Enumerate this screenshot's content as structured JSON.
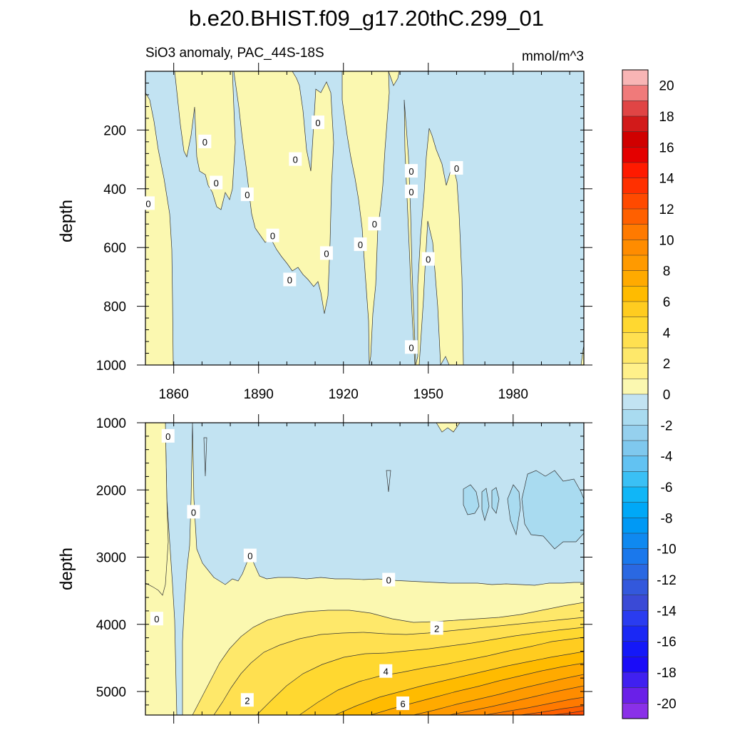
{
  "title": "b.e20.BHIST.f09_g17.20thC.299_01",
  "subtitle_left": "SiO3 anomaly, PAC_44S-18S",
  "subtitle_right": "mmol/m^3",
  "colors": {
    "zero_pos": "#fbf8b0",
    "zero_neg": "#c2e3f2",
    "neg_2": "#a9dbf0"
  },
  "chart_data": [
    {
      "type": "heatmap",
      "panel": "upper",
      "ylabel": "depth",
      "xlim": [
        1850,
        2005
      ],
      "ylim": [
        1000,
        0
      ],
      "x_ticks": [
        1860,
        1890,
        1920,
        1950,
        1980
      ],
      "x_tick_labels": [
        "1860",
        "1890",
        "1920",
        "1950",
        "1980"
      ],
      "y_ticks": [
        200,
        400,
        600,
        800,
        1000
      ],
      "y_tick_labels": [
        "200",
        "400",
        "600",
        "800",
        "1000"
      ],
      "contour_labels": [
        {
          "text": "0",
          "x": 1851,
          "y": 450
        },
        {
          "text": "0",
          "x": 1871,
          "y": 240
        },
        {
          "text": "0",
          "x": 1875,
          "y": 380
        },
        {
          "text": "0",
          "x": 1886,
          "y": 420
        },
        {
          "text": "0",
          "x": 1895,
          "y": 560
        },
        {
          "text": "0",
          "x": 1901,
          "y": 710
        },
        {
          "text": "0",
          "x": 1903,
          "y": 300
        },
        {
          "text": "0",
          "x": 1911,
          "y": 175
        },
        {
          "text": "0",
          "x": 1914,
          "y": 620
        },
        {
          "text": "0",
          "x": 1926,
          "y": 590
        },
        {
          "text": "0",
          "x": 1931,
          "y": 520
        },
        {
          "text": "0",
          "x": 1944,
          "y": 940
        },
        {
          "text": "0",
          "x": 1944,
          "y": 340
        },
        {
          "text": "0",
          "x": 1944,
          "y": 410
        },
        {
          "text": "0",
          "x": 1950,
          "y": 640
        },
        {
          "text": "0",
          "x": 1960,
          "y": 330
        }
      ]
    },
    {
      "type": "heatmap",
      "panel": "lower",
      "ylabel": "depth",
      "xlim": [
        1850,
        2005
      ],
      "ylim": [
        5350,
        1000
      ],
      "x_ticks": [
        1860,
        1890,
        1920,
        1950,
        1980
      ],
      "y_ticks": [
        1000,
        2000,
        3000,
        4000,
        5000
      ],
      "y_tick_labels": [
        "1000",
        "2000",
        "3000",
        "4000",
        "5000"
      ],
      "contour_labels": [
        {
          "text": "0",
          "x": 1858,
          "y": 1200
        },
        {
          "text": "0",
          "x": 1867,
          "y": 2330
        },
        {
          "text": "0",
          "x": 1887,
          "y": 2980
        },
        {
          "text": "0",
          "x": 1936,
          "y": 3340
        },
        {
          "text": "0",
          "x": 1854,
          "y": 3920
        },
        {
          "text": "2",
          "x": 1953,
          "y": 4060
        },
        {
          "text": "4",
          "x": 1935,
          "y": 4700
        },
        {
          "text": "2",
          "x": 1886,
          "y": 5130
        },
        {
          "text": "6",
          "x": 1941,
          "y": 5180
        }
      ]
    }
  ],
  "colorbar": {
    "labels": [
      "20",
      "18",
      "16",
      "14",
      "12",
      "10",
      "8",
      "6",
      "4",
      "2",
      "0",
      "-2",
      "-4",
      "-6",
      "-8",
      "-10",
      "-12",
      "-14",
      "-16",
      "-18",
      "-20"
    ],
    "colors": [
      "#f8b5b5",
      "#f07a7a",
      "#e04545",
      "#d21a1a",
      "#d00000",
      "#e40000",
      "#ff1a00",
      "#ff3000",
      "#ff4a00",
      "#ff6000",
      "#ff7a00",
      "#ff8c00",
      "#ff9a00",
      "#ffaa00",
      "#ffbb00",
      "#ffcc20",
      "#ffd830",
      "#ffe050",
      "#fee86a",
      "#fff08a",
      "#fbf8b0",
      "#c2e3f2",
      "#a9dbf0",
      "#95d0ee",
      "#7fc8ee",
      "#62c2f2",
      "#3ac0f5",
      "#10b6f7",
      "#00a8f7",
      "#0099f5",
      "#0f89f0",
      "#1a78ec",
      "#2a68e2",
      "#3358dc",
      "#3a4ad6",
      "#2a3cf0",
      "#1a28f5",
      "#1418f8",
      "#1a0cf8",
      "#4020f0",
      "#6a20e8",
      "#8a30e8"
    ]
  }
}
